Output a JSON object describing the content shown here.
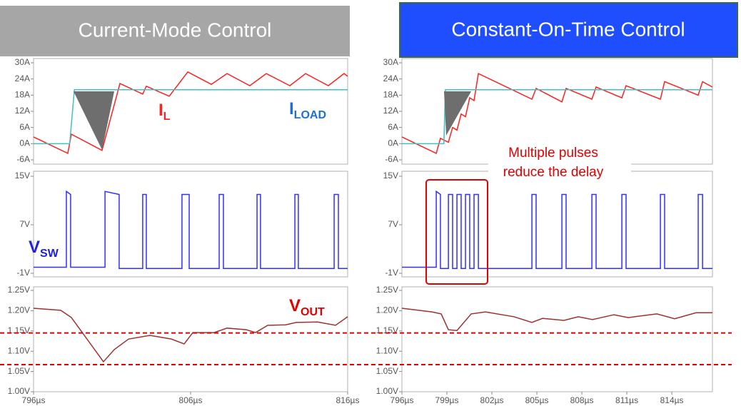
{
  "slide": {
    "titles": [
      "Current-Mode Control",
      "Constant-On-Time Control"
    ],
    "callout": [
      "Multiple pulses",
      "reduce the delay"
    ]
  },
  "chart_data": [
    {
      "type": "line",
      "xlim": [
        796,
        816
      ],
      "ylim": [
        -6,
        30
      ],
      "yticks": [
        {
          "value": 30,
          "label": "30A"
        },
        {
          "value": 24,
          "label": "24A"
        },
        {
          "value": 18,
          "label": "18A"
        },
        {
          "value": 12,
          "label": "12A"
        },
        {
          "value": 6,
          "label": "6A"
        },
        {
          "value": 0,
          "label": "0A"
        },
        {
          "value": -6,
          "label": "-6A"
        }
      ],
      "series": [
        {
          "color": "#ff2020",
          "x": [
            796,
            798.18,
            798.41,
            800.36,
            801.5,
            802.95,
            803.18,
            804.64,
            805.82,
            807.32,
            808.32,
            809.77,
            810.82,
            812.32,
            813.32,
            814.77,
            815.77,
            816
          ],
          "values": [
            2.5,
            -3.6,
            3.5,
            -2.5,
            22.3,
            18.4,
            21.3,
            17.6,
            26.6,
            22,
            26,
            21.5,
            26,
            21.5,
            26,
            21.5,
            26,
            25
          ]
        },
        {
          "color": "#40c0c0",
          "x": [
            796,
            798.3,
            798.6,
            816
          ],
          "values": [
            0,
            0,
            20,
            20
          ]
        }
      ],
      "annotations": [
        {
          "text": "I",
          "subscript": "L",
          "color": "#ff2020"
        },
        {
          "text": "I",
          "subscript": "LOAD",
          "color": "#2070d0"
        }
      ]
    },
    {
      "type": "line",
      "xlim": [
        796,
        816
      ],
      "ylim": [
        -1,
        15
      ],
      "yticks": [
        {
          "value": 15,
          "label": "15V"
        },
        {
          "value": 7,
          "label": "7V"
        },
        {
          "value": -1,
          "label": "-1V"
        }
      ],
      "series": [
        {
          "color": "#3030ff",
          "x": [
            796,
            798.09,
            798.09,
            798.36,
            798.36,
            800.55,
            800.55,
            801.45,
            801.45,
            802.95,
            802.95,
            803.18,
            803.18,
            805.45,
            805.45,
            805.91,
            805.91,
            807.82,
            807.82,
            808.09,
            808.09,
            810.23,
            810.23,
            810.45,
            810.45,
            812.64,
            812.64,
            812.86,
            812.86,
            815.14,
            815.14,
            815.41,
            815.41,
            816
          ],
          "values": [
            0,
            0,
            12.5,
            12,
            0,
            0,
            12.5,
            12,
            -0.2,
            -0.2,
            12,
            12,
            -0.2,
            -0.2,
            12,
            12,
            -0.2,
            -0.2,
            12,
            12,
            -0.2,
            -0.2,
            12,
            12,
            -0.2,
            -0.2,
            12,
            12,
            -0.2,
            -0.2,
            12,
            12,
            -0.2,
            -0.2
          ]
        }
      ],
      "annotations": [
        {
          "text": "V",
          "subscript": "SW",
          "color": "#2020e0"
        }
      ]
    },
    {
      "type": "line",
      "xlim": [
        796,
        816
      ],
      "ylim": [
        1.0,
        1.25
      ],
      "xticks": [
        {
          "value": 796,
          "label": "796µs"
        },
        {
          "value": 806,
          "label": "806µs"
        },
        {
          "value": 816,
          "label": "816µs"
        }
      ],
      "yticks": [
        {
          "value": 1.25,
          "label": "1.25V"
        },
        {
          "value": 1.2,
          "label": "1.20V"
        },
        {
          "value": 1.15,
          "label": "1.15V"
        },
        {
          "value": 1.1,
          "label": "1.10V"
        },
        {
          "value": 1.05,
          "label": "1.05V"
        },
        {
          "value": 1.0,
          "label": "1.00V"
        }
      ],
      "series": [
        {
          "color": "#a03030",
          "x": [
            796,
            797.73,
            798.41,
            800.45,
            801.14,
            802.05,
            803.41,
            804.77,
            805.59,
            806.14,
            807.5,
            808.32,
            809.55,
            810.14,
            810.91,
            812.05,
            812.73,
            814.09,
            815.23,
            816
          ],
          "values": [
            1.206,
            1.201,
            1.183,
            1.074,
            1.104,
            1.13,
            1.139,
            1.13,
            1.118,
            1.146,
            1.146,
            1.157,
            1.153,
            1.146,
            1.164,
            1.165,
            1.171,
            1.172,
            1.164,
            1.185
          ]
        }
      ],
      "reference_lines": [
        1.145,
        1.067
      ],
      "reference_color": "#e00000",
      "annotations": [
        {
          "text": "V",
          "subscript": "OUT",
          "color": "#e00000"
        }
      ]
    },
    {
      "type": "line",
      "xlim": [
        796,
        816.71
      ],
      "ylim": [
        -6,
        30
      ],
      "yticks": [
        {
          "value": 30,
          "label": "30A"
        },
        {
          "value": 24,
          "label": "24A"
        },
        {
          "value": 18,
          "label": "18A"
        },
        {
          "value": 12,
          "label": "12A"
        },
        {
          "value": 6,
          "label": "6A"
        },
        {
          "value": 0,
          "label": "0A"
        },
        {
          "value": -6,
          "label": "-6A"
        }
      ],
      "series": [
        {
          "color": "#ff2020",
          "x": [
            796,
            798.29,
            798.57,
            799.1,
            799.38,
            799.67,
            799.95,
            800.24,
            800.52,
            800.81,
            801.1,
            804.67,
            804.95,
            806.67,
            806.95,
            808.67,
            808.95,
            810.67,
            810.95,
            813.24,
            813.52,
            815.76,
            816.05,
            816.71
          ],
          "values": [
            2.5,
            -3.6,
            2,
            0.5,
            6,
            5,
            11,
            10,
            17,
            16,
            26,
            16.5,
            20.5,
            15.5,
            20.5,
            16.5,
            21,
            17,
            21.5,
            16.5,
            23,
            18,
            23,
            21
          ]
        },
        {
          "color": "#40c0c0",
          "x": [
            796,
            798.8,
            798.9,
            816.71
          ],
          "values": [
            0,
            0,
            20,
            20
          ]
        }
      ]
    },
    {
      "type": "line",
      "xlim": [
        796,
        816.71
      ],
      "ylim": [
        -1,
        15
      ],
      "yticks": [
        {
          "value": 15,
          "label": "15V"
        },
        {
          "value": 7,
          "label": "7V"
        },
        {
          "value": -1,
          "label": "-1V"
        }
      ],
      "series": [
        {
          "color": "#3030ff",
          "x": [
            796,
            798.29,
            798.29,
            798.57,
            798.57,
            799.1,
            799.1,
            799.38,
            799.38,
            799.67,
            799.67,
            799.95,
            799.95,
            800.24,
            800.24,
            800.52,
            800.52,
            800.81,
            800.81,
            801.1,
            801.1,
            804.67,
            804.67,
            804.95,
            804.95,
            806.67,
            806.67,
            806.95,
            806.95,
            808.67,
            808.67,
            808.95,
            808.95,
            810.67,
            810.67,
            810.95,
            810.95,
            813.24,
            813.24,
            813.52,
            813.52,
            815.76,
            815.76,
            816.05,
            816.05,
            816.71
          ],
          "values": [
            0,
            0,
            12.5,
            12,
            -0.2,
            -0.2,
            12,
            12,
            -0.2,
            -0.2,
            12,
            12,
            -0.2,
            -0.2,
            12,
            12,
            -0.2,
            -0.2,
            12,
            12,
            -0.2,
            -0.2,
            12,
            12,
            -0.2,
            -0.2,
            12,
            12,
            -0.2,
            -0.2,
            12,
            12,
            -0.2,
            -0.2,
            12,
            12,
            -0.2,
            -0.2,
            12,
            12,
            -0.2,
            -0.2,
            12,
            12,
            -0.2,
            -0.2
          ]
        }
      ]
    },
    {
      "type": "line",
      "xlim": [
        796,
        816.71
      ],
      "ylim": [
        1.0,
        1.25
      ],
      "xticks": [
        {
          "value": 796,
          "label": "796µs"
        },
        {
          "value": 799,
          "label": "799µs"
        },
        {
          "value": 802,
          "label": "802µs"
        },
        {
          "value": 805,
          "label": "805µs"
        },
        {
          "value": 808,
          "label": "808µs"
        },
        {
          "value": 811,
          "label": "811µs"
        },
        {
          "value": 814,
          "label": "814µs"
        }
      ],
      "yticks": [
        {
          "value": 1.25,
          "label": "1.25V"
        },
        {
          "value": 1.2,
          "label": "1.20V"
        },
        {
          "value": 1.15,
          "label": "1.15V"
        },
        {
          "value": 1.1,
          "label": "1.10V"
        },
        {
          "value": 1.05,
          "label": "1.05V"
        },
        {
          "value": 1.0,
          "label": "1.00V"
        }
      ],
      "series": [
        {
          "color": "#a03030",
          "x": [
            796,
            798,
            798.62,
            799.1,
            799.67,
            800.62,
            801.57,
            803.48,
            804.67,
            805.38,
            806.81,
            807.76,
            808.71,
            810.14,
            811.1,
            813,
            814.19,
            815.62,
            816.71
          ],
          "values": [
            1.206,
            1.197,
            1.192,
            1.153,
            1.151,
            1.192,
            1.197,
            1.185,
            1.171,
            1.181,
            1.176,
            1.185,
            1.178,
            1.19,
            1.183,
            1.192,
            1.18,
            1.195,
            1.195
          ]
        }
      ]
    }
  ]
}
